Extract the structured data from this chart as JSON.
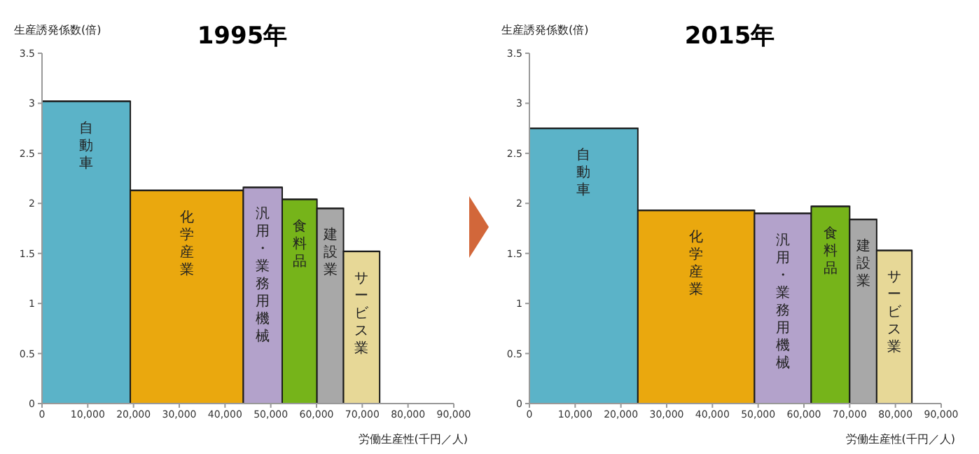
{
  "chart_data": [
    {
      "type": "bar",
      "title": "1995年",
      "xlabel": "労働生産性(千円／人)",
      "ylabel": "生産誘発係数(倍)",
      "x": [
        9650,
        31650,
        48250,
        56300,
        63000,
        69850
      ],
      "xerrors": [
        9650,
        12350,
        4250,
        3800,
        2900,
        3950
      ],
      "values": [
        3.02,
        2.13,
        2.16,
        2.04,
        1.95,
        1.52
      ],
      "colors": [
        "#5bb3c8",
        "#eaa80e",
        "#b3a2cb",
        "#76b41a",
        "#a8a8a8",
        "#e7d897"
      ],
      "annotations": [
        "自動車",
        "化学産業",
        "汎用・業務用機械",
        "食料品",
        "建設業",
        "サービス業"
      ],
      "xlim": [
        0,
        90000
      ],
      "xticks": [
        0,
        {
          "value": 10000,
          "label": "10,000"
        },
        {
          "value": 20000,
          "label": "20,000"
        },
        {
          "value": 30000,
          "label": "30,000"
        },
        {
          "value": 40000,
          "label": "40,000"
        },
        {
          "value": 50000,
          "label": "50,000"
        },
        {
          "value": 60000,
          "label": "60,000"
        },
        {
          "value": 70000,
          "label": "70,000"
        },
        {
          "value": 80000,
          "label": "80,000"
        },
        {
          "value": 90000,
          "label": "90,000"
        }
      ],
      "ylim": [
        0,
        3.5
      ],
      "yticks": [
        0,
        0.5,
        1,
        1.5,
        2,
        2.5,
        3,
        3.5
      ]
    },
    {
      "type": "bar",
      "title": "2015年",
      "xlabel": "労働生産性(千円／人)",
      "ylabel": "生産誘発係数(倍)",
      "x": [
        11850,
        36450,
        55400,
        65800,
        72950,
        79750
      ],
      "xerrors": [
        11850,
        12750,
        6200,
        4200,
        2950,
        3850
      ],
      "values": [
        2.75,
        1.93,
        1.9,
        1.97,
        1.84,
        1.53
      ],
      "colors": [
        "#5bb3c8",
        "#eaa80e",
        "#b3a2cb",
        "#76b41a",
        "#a8a8a8",
        "#e7d897"
      ],
      "annotations": [
        "自動車",
        "化学産業",
        "汎用・業務用機械",
        "食料品",
        "建設業",
        "サービス業"
      ],
      "xlim": [
        0,
        90000
      ],
      "xticks": [
        0,
        {
          "value": 10000,
          "label": "10,000"
        },
        {
          "value": 20000,
          "label": "20,000"
        },
        {
          "value": 30000,
          "label": "30,000"
        },
        {
          "value": 40000,
          "label": "40,000"
        },
        {
          "value": 50000,
          "label": "50,000"
        },
        {
          "value": 60000,
          "label": "60,000"
        },
        {
          "value": 70000,
          "label": "70,000"
        },
        {
          "value": 80000,
          "label": "80,000"
        },
        {
          "value": 90000,
          "label": "90,000"
        }
      ],
      "ylim": [
        0,
        3.5
      ],
      "yticks": [
        0,
        0.5,
        1,
        1.5,
        2,
        2.5,
        3,
        3.5
      ]
    }
  ]
}
